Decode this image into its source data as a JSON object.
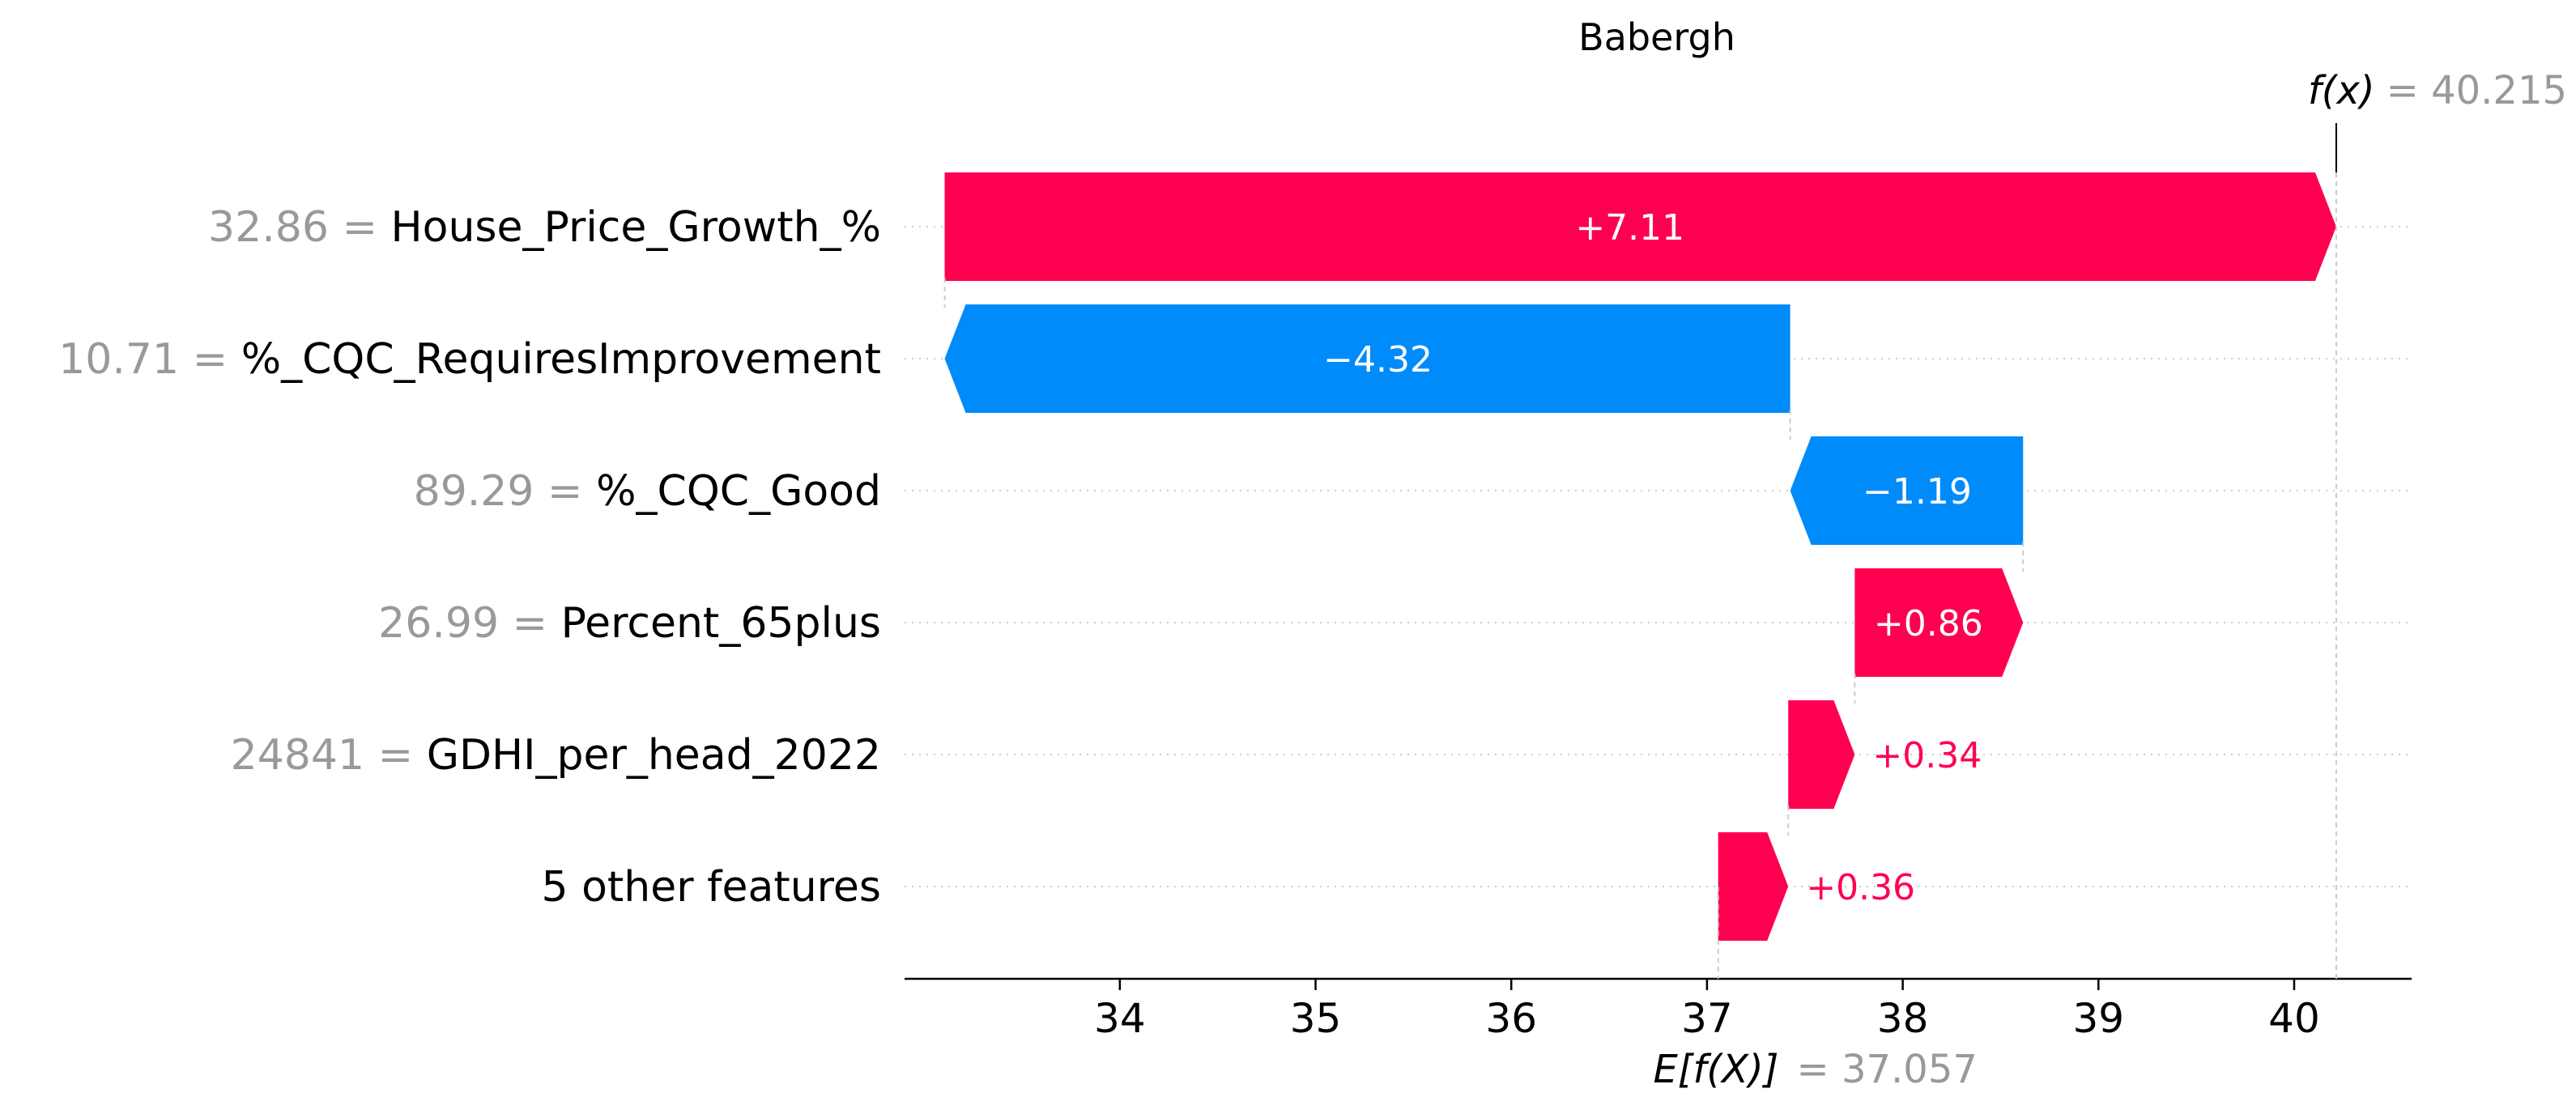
{
  "chart_data": {
    "type": "waterfall",
    "title": "Babergh",
    "xlim": [
      32.9,
      40.6
    ],
    "x_ticks": [
      34,
      35,
      36,
      37,
      38,
      39,
      40
    ],
    "base_value": 37.057,
    "base_value_label": "= 37.057",
    "base_value_name": "E[f(X)]",
    "output_value": 40.215,
    "output_value_label": "= 40.215",
    "output_value_name": "f(x)",
    "grid": "dotted horizontal row lines",
    "features": [
      {
        "value_label": "32.86 =",
        "name": "House_Price_Growth_%",
        "start": 33.105,
        "end": 40.215,
        "shap": 7.11,
        "label": "+7.11"
      },
      {
        "value_label": "10.71 =",
        "name": "%_CQC_RequiresImprovement",
        "start": 37.425,
        "end": 33.105,
        "shap": -4.32,
        "label": "−4.32"
      },
      {
        "value_label": "89.29 =",
        "name": "%_CQC_Good",
        "start": 38.615,
        "end": 37.425,
        "shap": -1.19,
        "label": "−1.19"
      },
      {
        "value_label": "26.99 =",
        "name": "Percent_65plus",
        "start": 37.755,
        "end": 38.615,
        "shap": 0.86,
        "label": "+0.86"
      },
      {
        "value_label": "24841 =",
        "name": "GDHI_per_head_2022",
        "start": 37.415,
        "end": 37.755,
        "shap": 0.34,
        "label": "+0.34"
      },
      {
        "value_label": "",
        "name": "5 other features",
        "start": 37.057,
        "end": 37.415,
        "shap": 0.36,
        "label": "+0.36"
      }
    ],
    "colors": {
      "positive": "#ff0051",
      "negative": "#008bfb",
      "value_gray": "#999999",
      "text": "#000000",
      "grid": "#cccccc"
    }
  }
}
